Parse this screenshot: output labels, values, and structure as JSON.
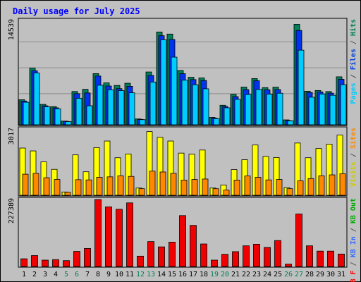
{
  "chart_data": {
    "type": "bar",
    "title": "Daily usage for July 2025",
    "categories": [
      "1",
      "2",
      "3",
      "4",
      "5",
      "6",
      "7",
      "8",
      "9",
      "10",
      "11",
      "12",
      "13",
      "14",
      "15",
      "16",
      "17",
      "18",
      "19",
      "20",
      "21",
      "22",
      "23",
      "24",
      "25",
      "26",
      "27",
      "28",
      "29",
      "30",
      "31"
    ],
    "weekend_days": [
      5,
      6,
      12,
      13,
      19,
      20,
      26,
      27
    ],
    "panels": [
      {
        "id": "top",
        "ymax_label": "14539",
        "ylim": [
          0,
          14539
        ],
        "legend": [
          {
            "text": "Pages",
            "color": "#00ccff"
          },
          {
            "text": " / ",
            "color": "#555555"
          },
          {
            "text": "Files",
            "color": "#0044dd"
          },
          {
            "text": " / ",
            "color": "#555555"
          },
          {
            "text": "Hits",
            "color": "#00804f"
          }
        ],
        "series": [
          {
            "name": "Hits",
            "color": "#00805a",
            "values": [
              3520,
              7950,
              2860,
              2550,
              520,
              4670,
              4980,
              7180,
              5880,
              5520,
              5830,
              820,
              7410,
              13020,
              12730,
              7620,
              6670,
              6570,
              1040,
              2740,
              4280,
              5290,
              6480,
              5210,
              5280,
              690,
              14100,
              4710,
              4810,
              4660,
              6730
            ]
          },
          {
            "name": "Files",
            "color": "#0033ee",
            "values": [
              3330,
              7580,
              2660,
              2380,
              480,
              4370,
              4470,
              6840,
              5440,
              5070,
              5400,
              760,
              6920,
              12500,
              11970,
              7170,
              6340,
              6210,
              940,
              2570,
              3950,
              4930,
              6180,
              4910,
              4940,
              600,
              13230,
              4530,
              4610,
              4440,
              6380
            ]
          },
          {
            "name": "Pages",
            "color": "#00ccff",
            "values": [
              3160,
              7270,
              2530,
              2250,
              440,
              3720,
              2670,
              5550,
              4910,
              4800,
              4490,
              720,
              6000,
              11930,
              9490,
              6260,
              5620,
              5050,
              860,
              2380,
              3570,
              4250,
              4950,
              4310,
              4430,
              560,
              10470,
              3870,
              4320,
              4140,
              5630
            ]
          }
        ]
      },
      {
        "id": "middle",
        "ymax_label": "3017",
        "ylim": [
          0,
          3017
        ],
        "legend": [
          {
            "text": "Visits",
            "color": "#cccc00"
          },
          {
            "text": " / ",
            "color": "#555555"
          },
          {
            "text": "Sites",
            "color": "#ff8800"
          }
        ],
        "series": [
          {
            "name": "Visits",
            "color": "#ffff00",
            "values": [
              2150,
              2020,
              1520,
              1180,
              150,
              1840,
              1070,
              2170,
              2470,
              1710,
              1880,
              330,
              2900,
              2640,
              2470,
              1920,
              1870,
              2060,
              330,
              470,
              1170,
              1620,
              2290,
              1770,
              1720,
              350,
              2380,
              1710,
              2130,
              2330,
              2740
            ]
          },
          {
            "name": "Sites",
            "color": "#ff8800",
            "values": [
              960,
              1000,
              800,
              720,
              140,
              710,
              700,
              820,
              840,
              890,
              860,
              300,
              1100,
              1060,
              1000,
              690,
              720,
              740,
              300,
              240,
              690,
              880,
              820,
              700,
              720,
              300,
              660,
              760,
              890,
              930,
              980
            ]
          }
        ]
      },
      {
        "id": "bottom",
        "ymax_label": "227389",
        "ylim": [
          0,
          227389
        ],
        "legend": [
          {
            "text": "KB F",
            "color": "#ff0000"
          },
          {
            "text": " / ",
            "color": "#555555"
          },
          {
            "text": "KB In",
            "color": "#3366ff"
          },
          {
            "text": " / ",
            "color": "#555555"
          },
          {
            "text": "KB Out",
            "color": "#00aa00"
          }
        ],
        "series": [
          {
            "name": "KB F",
            "color": "#ee0000",
            "values": [
              26100,
              37100,
              21600,
              23400,
              19800,
              51300,
              61200,
              227400,
              202500,
              194400,
              216000,
              35100,
              84600,
              66600,
              82800,
              172800,
              139500,
              76500,
              21600,
              41400,
              50400,
              70200,
              75600,
              64800,
              88200,
              8100,
              178200,
              70200,
              52200,
              52200,
              42300
            ]
          }
        ]
      }
    ]
  }
}
